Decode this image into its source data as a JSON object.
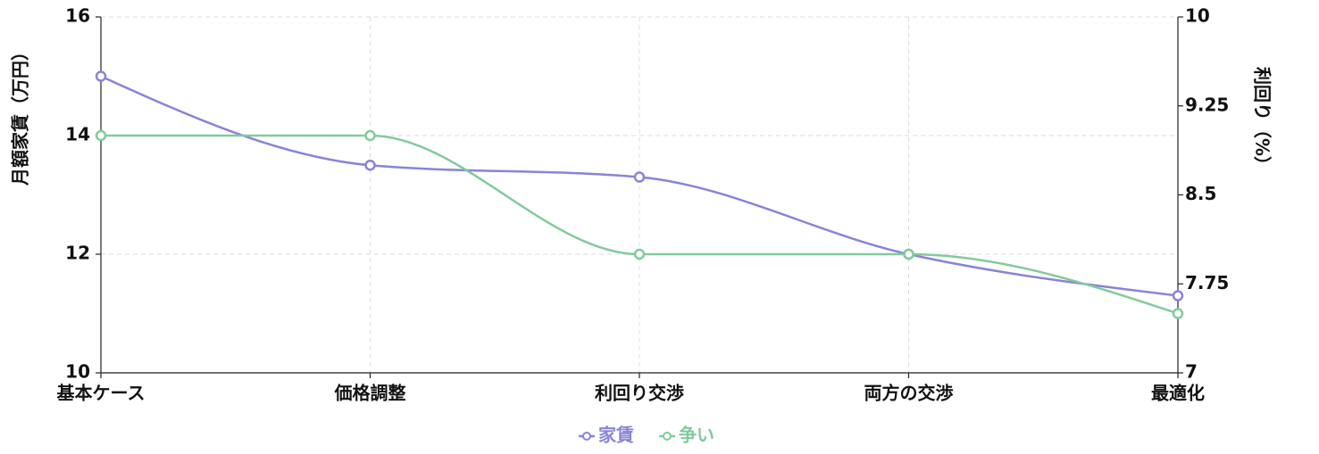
{
  "chart_data": {
    "type": "line",
    "categories": [
      "基本ケース",
      "価格調整",
      "利回り交渉",
      "両方の交渉",
      "最適化"
    ],
    "ylabel": "月額家賃（万円）",
    "y2label": "利回り（%）",
    "ylim": [
      10,
      16
    ],
    "yticks": [
      10,
      12,
      14,
      16
    ],
    "y2lim": [
      7,
      10
    ],
    "y2ticks": [
      7,
      7.75,
      8.5,
      9.25,
      10
    ],
    "grid": true,
    "legend": "bottom",
    "series": [
      {
        "name": "家賃",
        "color": "#8884d8",
        "values": [
          15,
          13.5,
          13.3,
          12,
          11.3
        ]
      },
      {
        "name": "争い",
        "color": "#82ca9d",
        "axis": "y2",
        "values": [
          9.0,
          9.0,
          8.0,
          8.0,
          7.5
        ]
      }
    ]
  }
}
